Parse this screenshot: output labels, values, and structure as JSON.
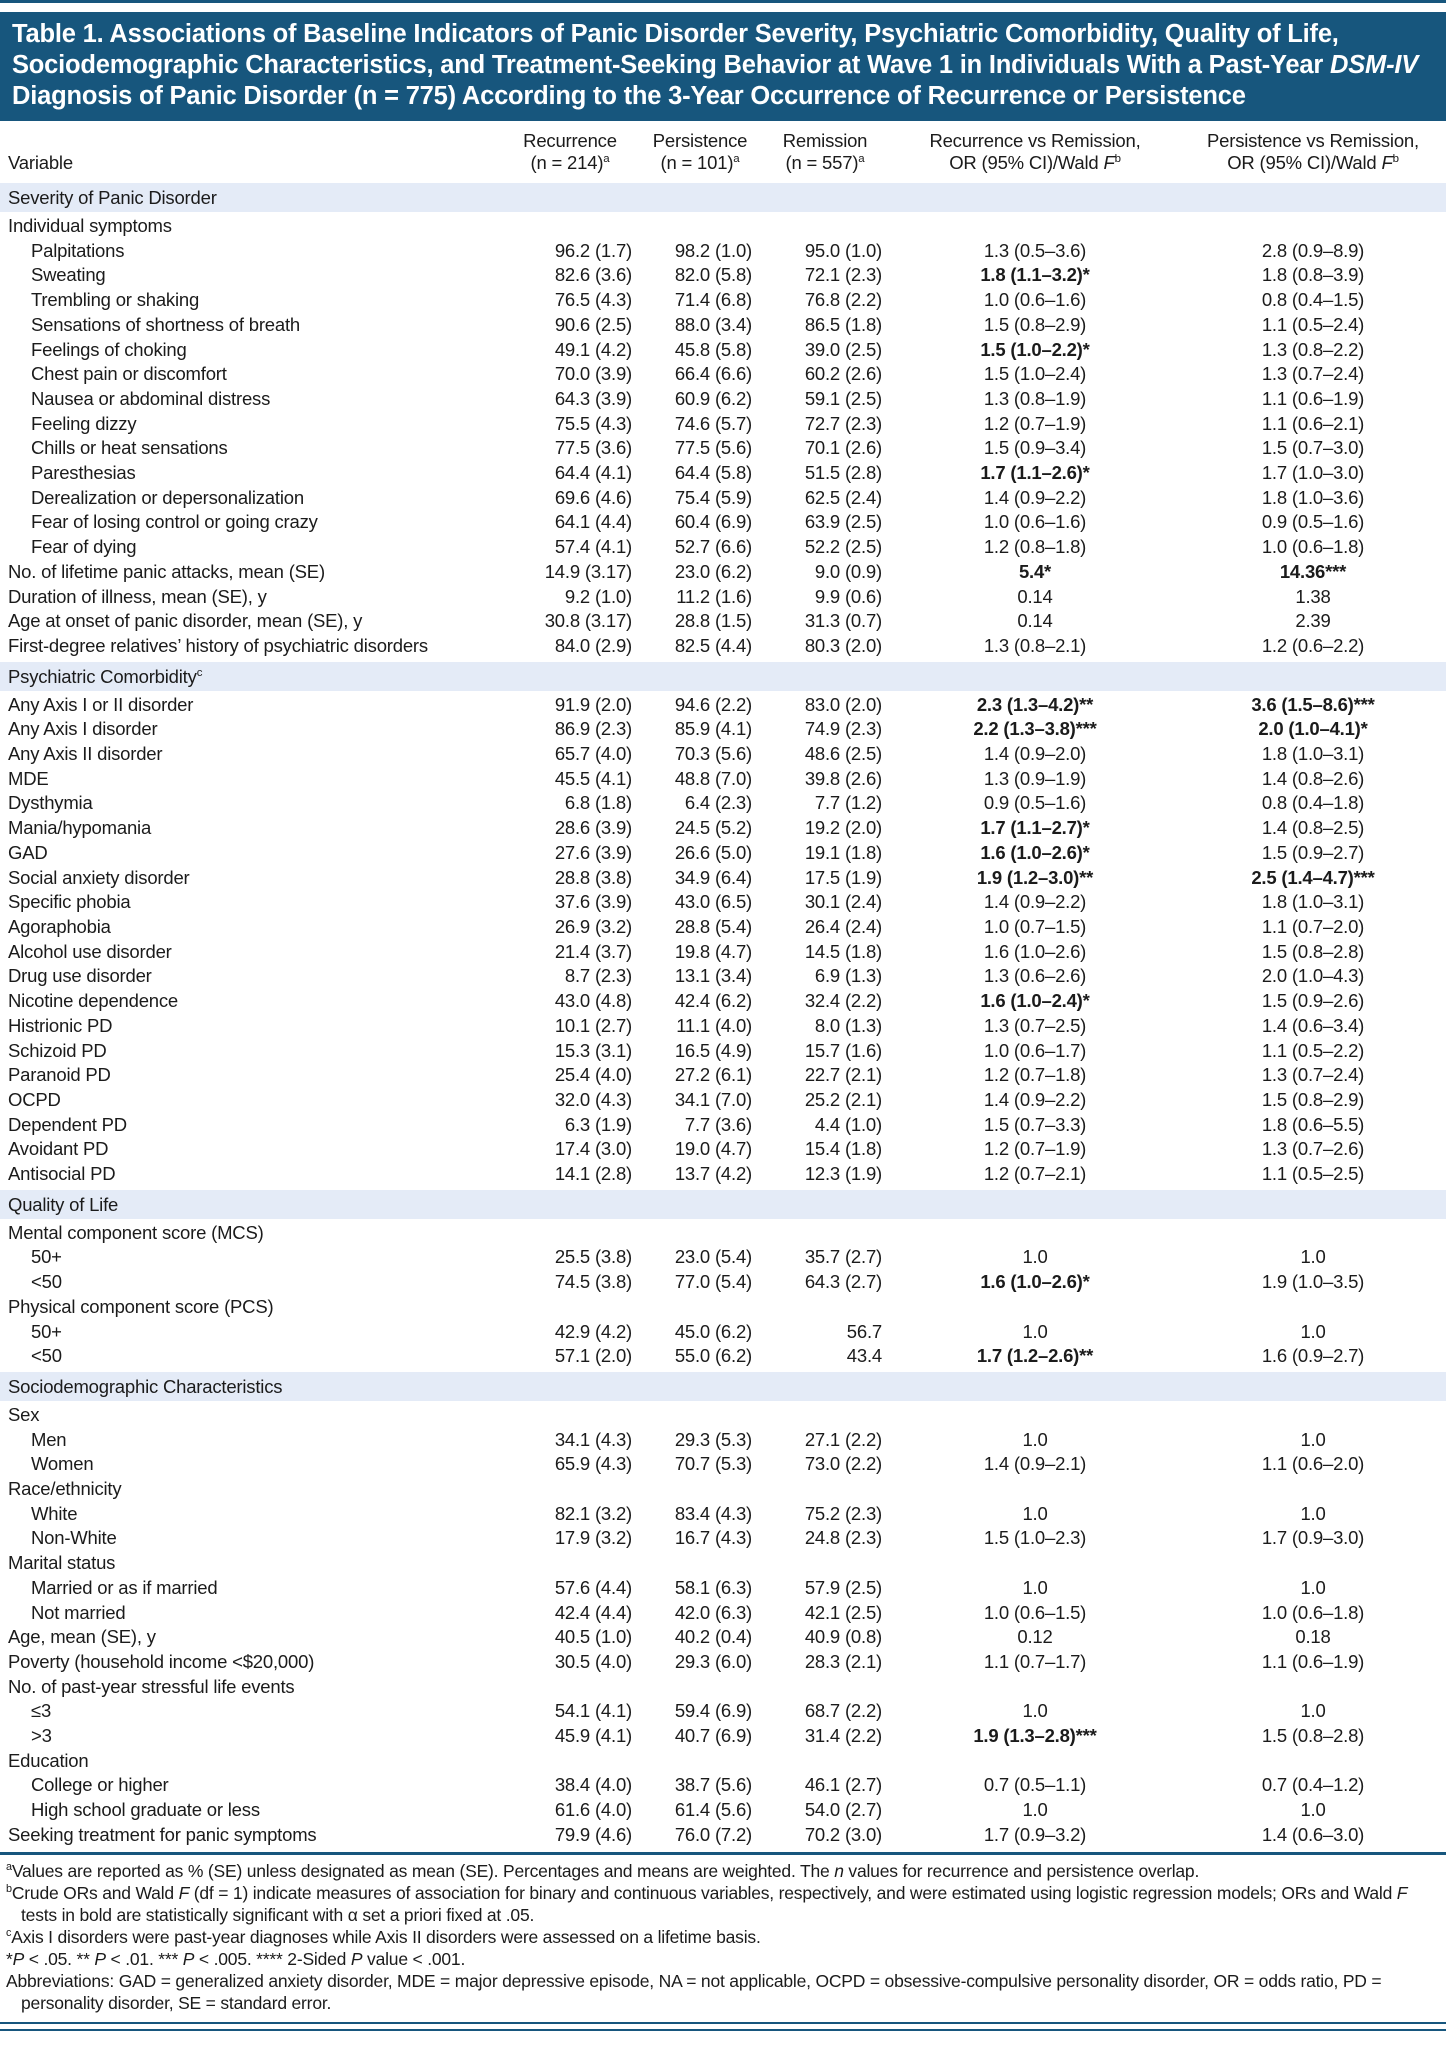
{
  "colors": {
    "header_bg": "#17567D",
    "section_band_bg": "#E4EBF7",
    "rule": "#17567D",
    "title_text": "#FFFFFF",
    "body_text": "#1B1B1B"
  },
  "title": {
    "line1": "Table 1. Associations of Baseline Indicators of Panic Disorder Severity, Psychiatric Comorbidity, Quality of Life,",
    "line2": "Sociodemographic Characteristics, and Treatment-Seeking Behavior at Wave 1 in Individuals With a Past-Year ",
    "line2_italic": "DSM-IV",
    "line3": "Diagnosis of Panic Disorder (n = 775) According to the 3-Year Occurrence of Recurrence or Persistence"
  },
  "columns": {
    "variable": "Variable",
    "recurrence": {
      "line1": "Recurrence",
      "line2": "(n = 214)",
      "sup": "a"
    },
    "persistence": {
      "line1": "Persistence",
      "line2": "(n = 101)",
      "sup": "a"
    },
    "remission": {
      "line1": "Remission",
      "line2": "(n = 557)",
      "sup": "a"
    },
    "rr": {
      "line1": "Recurrence vs Remission,",
      "line2": "OR (95% CI)/Wald ",
      "italic": "F",
      "sup": "b"
    },
    "pr": {
      "line1": "Persistence vs Remission,",
      "line2": "OR (95% CI)/Wald ",
      "italic": "F",
      "sup": "b"
    }
  },
  "table": {
    "sections": [
      {
        "label": "Severity of Panic Disorder",
        "sup": "",
        "rows": [
          [
            "Individual symptoms",
            0,
            "",
            "",
            "",
            "",
            "",
            ""
          ],
          [
            "Palpitations",
            1,
            "96.2 (1.7)",
            "98.2 (1.0)",
            "95.0 (1.0)",
            "1.3 (0.5–3.6)",
            "2.8 (0.9–8.9)",
            ""
          ],
          [
            "Sweating",
            1,
            "82.6 (3.6)",
            "82.0 (5.8)",
            "72.1 (2.3)",
            "1.8 (1.1–3.2)*",
            "1.8 (0.8–3.9)",
            "rr"
          ],
          [
            "Trembling or shaking",
            1,
            "76.5 (4.3)",
            "71.4 (6.8)",
            "76.8 (2.2)",
            "1.0 (0.6–1.6)",
            "0.8 (0.4–1.5)",
            ""
          ],
          [
            "Sensations of shortness of breath",
            1,
            "90.6 (2.5)",
            "88.0 (3.4)",
            "86.5 (1.8)",
            "1.5 (0.8–2.9)",
            "1.1 (0.5–2.4)",
            ""
          ],
          [
            "Feelings of choking",
            1,
            "49.1 (4.2)",
            "45.8 (5.8)",
            "39.0 (2.5)",
            "1.5 (1.0–2.2)*",
            "1.3 (0.8–2.2)",
            "rr"
          ],
          [
            "Chest pain or discomfort",
            1,
            "70.0 (3.9)",
            "66.4 (6.6)",
            "60.2 (2.6)",
            "1.5 (1.0–2.4)",
            "1.3 (0.7–2.4)",
            ""
          ],
          [
            "Nausea or abdominal distress",
            1,
            "64.3 (3.9)",
            "60.9 (6.2)",
            "59.1 (2.5)",
            "1.3 (0.8–1.9)",
            "1.1 (0.6–1.9)",
            ""
          ],
          [
            "Feeling dizzy",
            1,
            "75.5 (4.3)",
            "74.6 (5.7)",
            "72.7 (2.3)",
            "1.2 (0.7–1.9)",
            "1.1 (0.6–2.1)",
            ""
          ],
          [
            "Chills or heat sensations",
            1,
            "77.5 (3.6)",
            "77.5 (5.6)",
            "70.1 (2.6)",
            "1.5 (0.9–3.4)",
            "1.5 (0.7–3.0)",
            ""
          ],
          [
            "Paresthesias",
            1,
            "64.4 (4.1)",
            "64.4 (5.8)",
            "51.5 (2.8)",
            "1.7 (1.1–2.6)*",
            "1.7 (1.0–3.0)",
            "rr"
          ],
          [
            "Derealization or depersonalization",
            1,
            "69.6 (4.6)",
            "75.4 (5.9)",
            "62.5 (2.4)",
            "1.4 (0.9–2.2)",
            "1.8 (1.0–3.6)",
            ""
          ],
          [
            "Fear of losing control or going crazy",
            1,
            "64.1 (4.4)",
            "60.4 (6.9)",
            "63.9 (2.5)",
            "1.0 (0.6–1.6)",
            "0.9 (0.5–1.6)",
            ""
          ],
          [
            "Fear of dying",
            1,
            "57.4 (4.1)",
            "52.7 (6.6)",
            "52.2 (2.5)",
            "1.2 (0.8–1.8)",
            "1.0 (0.6–1.8)",
            ""
          ],
          [
            "No. of lifetime panic attacks, mean (SE)",
            0,
            "14.9 (3.17)",
            "23.0 (6.2)",
            "9.0 (0.9)",
            "5.4*",
            "14.36***",
            "both"
          ],
          [
            "Duration of illness, mean (SE), y",
            0,
            "9.2 (1.0)",
            "11.2 (1.6)",
            "9.9 (0.6)",
            "0.14",
            "1.38",
            ""
          ],
          [
            "Age at onset of panic disorder, mean (SE), y",
            0,
            "30.8 (3.17)",
            "28.8 (1.5)",
            "31.3 (0.7)",
            "0.14",
            "2.39",
            ""
          ],
          [
            "First-degree relatives’ history of psychiatric disorders",
            0,
            "84.0 (2.9)",
            "82.5 (4.4)",
            "80.3 (2.0)",
            "1.3 (0.8–2.1)",
            "1.2 (0.6–2.2)",
            ""
          ]
        ]
      },
      {
        "label": "Psychiatric Comorbidity",
        "sup": "c",
        "rows": [
          [
            "Any Axis I or II disorder",
            0,
            "91.9 (2.0)",
            "94.6 (2.2)",
            "83.0 (2.0)",
            "2.3 (1.3–4.2)**",
            "3.6 (1.5–8.6)***",
            "both"
          ],
          [
            "Any Axis I disorder",
            0,
            "86.9 (2.3)",
            "85.9 (4.1)",
            "74.9 (2.3)",
            "2.2 (1.3–3.8)***",
            "2.0 (1.0–4.1)*",
            "both"
          ],
          [
            "Any Axis II disorder",
            0,
            "65.7 (4.0)",
            "70.3 (5.6)",
            "48.6 (2.5)",
            "1.4 (0.9–2.0)",
            "1.8 (1.0–3.1)",
            ""
          ],
          [
            "MDE",
            0,
            "45.5 (4.1)",
            "48.8 (7.0)",
            "39.8 (2.6)",
            "1.3 (0.9–1.9)",
            "1.4 (0.8–2.6)",
            ""
          ],
          [
            "Dysthymia",
            0,
            "6.8 (1.8)",
            "6.4 (2.3)",
            "7.7 (1.2)",
            "0.9 (0.5–1.6)",
            "0.8 (0.4–1.8)",
            ""
          ],
          [
            "Mania/hypomania",
            0,
            "28.6 (3.9)",
            "24.5 (5.2)",
            "19.2 (2.0)",
            "1.7 (1.1–2.7)*",
            "1.4 (0.8–2.5)",
            "rr"
          ],
          [
            "GAD",
            0,
            "27.6 (3.9)",
            "26.6 (5.0)",
            "19.1 (1.8)",
            "1.6 (1.0–2.6)*",
            "1.5 (0.9–2.7)",
            "rr"
          ],
          [
            "Social anxiety disorder",
            0,
            "28.8 (3.8)",
            "34.9 (6.4)",
            "17.5 (1.9)",
            "1.9 (1.2–3.0)**",
            "2.5 (1.4–4.7)***",
            "both"
          ],
          [
            "Specific phobia",
            0,
            "37.6 (3.9)",
            "43.0 (6.5)",
            "30.1 (2.4)",
            "1.4 (0.9–2.2)",
            "1.8 (1.0–3.1)",
            ""
          ],
          [
            "Agoraphobia",
            0,
            "26.9 (3.2)",
            "28.8 (5.4)",
            "26.4 (2.4)",
            "1.0 (0.7–1.5)",
            "1.1 (0.7–2.0)",
            ""
          ],
          [
            "Alcohol use disorder",
            0,
            "21.4 (3.7)",
            "19.8 (4.7)",
            "14.5 (1.8)",
            "1.6 (1.0–2.6)",
            "1.5 (0.8–2.8)",
            ""
          ],
          [
            "Drug use disorder",
            0,
            "8.7 (2.3)",
            "13.1 (3.4)",
            "6.9 (1.3)",
            "1.3 (0.6–2.6)",
            "2.0 (1.0–4.3)",
            ""
          ],
          [
            "Nicotine dependence",
            0,
            "43.0 (4.8)",
            "42.4 (6.2)",
            "32.4 (2.2)",
            "1.6 (1.0–2.4)*",
            "1.5 (0.9–2.6)",
            "rr"
          ],
          [
            "Histrionic PD",
            0,
            "10.1 (2.7)",
            "11.1 (4.0)",
            "8.0 (1.3)",
            "1.3 (0.7–2.5)",
            "1.4 (0.6–3.4)",
            ""
          ],
          [
            "Schizoid PD",
            0,
            "15.3 (3.1)",
            "16.5 (4.9)",
            "15.7 (1.6)",
            "1.0 (0.6–1.7)",
            "1.1 (0.5–2.2)",
            ""
          ],
          [
            "Paranoid PD",
            0,
            "25.4 (4.0)",
            "27.2 (6.1)",
            "22.7 (2.1)",
            "1.2 (0.7–1.8)",
            "1.3 (0.7–2.4)",
            ""
          ],
          [
            "OCPD",
            0,
            "32.0 (4.3)",
            "34.1 (7.0)",
            "25.2 (2.1)",
            "1.4 (0.9–2.2)",
            "1.5 (0.8–2.9)",
            ""
          ],
          [
            "Dependent PD",
            0,
            "6.3 (1.9)",
            "7.7 (3.6)",
            "4.4 (1.0)",
            "1.5 (0.7–3.3)",
            "1.8 (0.6–5.5)",
            ""
          ],
          [
            "Avoidant PD",
            0,
            "17.4 (3.0)",
            "19.0 (4.7)",
            "15.4 (1.8)",
            "1.2 (0.7–1.9)",
            "1.3 (0.7–2.6)",
            ""
          ],
          [
            "Antisocial PD",
            0,
            "14.1 (2.8)",
            "13.7 (4.2)",
            "12.3 (1.9)",
            "1.2 (0.7–2.1)",
            "1.1 (0.5–2.5)",
            ""
          ]
        ]
      },
      {
        "label": "Quality of Life",
        "sup": "",
        "rows": [
          [
            "Mental component score (MCS)",
            0,
            "",
            "",
            "",
            "",
            "",
            ""
          ],
          [
            "50+",
            1,
            "25.5 (3.8)",
            "23.0 (5.4)",
            "35.7 (2.7)",
            "1.0",
            "1.0",
            ""
          ],
          [
            "<50",
            1,
            "74.5 (3.8)",
            "77.0 (5.4)",
            "64.3 (2.7)",
            "1.6 (1.0–2.6)*",
            "1.9 (1.0–3.5)",
            "rr"
          ],
          [
            "Physical component score (PCS)",
            0,
            "",
            "",
            "",
            "",
            "",
            ""
          ],
          [
            "50+",
            1,
            "42.9 (4.2)",
            "45.0 (6.2)",
            "56.7",
            "1.0",
            "1.0",
            ""
          ],
          [
            "<50",
            1,
            "57.1 (2.0)",
            "55.0 (6.2)",
            "43.4",
            "1.7 (1.2–2.6)**",
            "1.6 (0.9–2.7)",
            "rr"
          ]
        ]
      },
      {
        "label": "Sociodemographic Characteristics",
        "sup": "",
        "rows": [
          [
            "Sex",
            0,
            "",
            "",
            "",
            "",
            "",
            ""
          ],
          [
            "Men",
            1,
            "34.1 (4.3)",
            "29.3 (5.3)",
            "27.1 (2.2)",
            "1.0",
            "1.0",
            ""
          ],
          [
            "Women",
            1,
            "65.9 (4.3)",
            "70.7 (5.3)",
            "73.0 (2.2)",
            "1.4 (0.9–2.1)",
            "1.1 (0.6–2.0)",
            ""
          ],
          [
            "Race/ethnicity",
            0,
            "",
            "",
            "",
            "",
            "",
            ""
          ],
          [
            "White",
            1,
            "82.1 (3.2)",
            "83.4 (4.3)",
            "75.2 (2.3)",
            "1.0",
            "1.0",
            ""
          ],
          [
            "Non-White",
            1,
            "17.9 (3.2)",
            "16.7 (4.3)",
            "24.8 (2.3)",
            "1.5 (1.0–2.3)",
            "1.7 (0.9–3.0)",
            ""
          ],
          [
            "Marital status",
            0,
            "",
            "",
            "",
            "",
            "",
            ""
          ],
          [
            "Married or as if married",
            1,
            "57.6 (4.4)",
            "58.1 (6.3)",
            "57.9 (2.5)",
            "1.0",
            "1.0",
            ""
          ],
          [
            "Not married",
            1,
            "42.4 (4.4)",
            "42.0 (6.3)",
            "42.1 (2.5)",
            "1.0 (0.6–1.5)",
            "1.0 (0.6–1.8)",
            ""
          ],
          [
            "Age, mean (SE), y",
            0,
            "40.5 (1.0)",
            "40.2 (0.4)",
            "40.9 (0.8)",
            "0.12",
            "0.18",
            ""
          ],
          [
            "Poverty (household income <$20,000)",
            0,
            "30.5 (4.0)",
            "29.3 (6.0)",
            "28.3 (2.1)",
            "1.1 (0.7–1.7)",
            "1.1 (0.6–1.9)",
            ""
          ],
          [
            "No. of past-year stressful life events",
            0,
            "",
            "",
            "",
            "",
            "",
            ""
          ],
          [
            "≤3",
            1,
            "54.1 (4.1)",
            "59.4 (6.9)",
            "68.7 (2.2)",
            "1.0",
            "1.0",
            ""
          ],
          [
            ">3",
            1,
            "45.9 (4.1)",
            "40.7 (6.9)",
            "31.4 (2.2)",
            "1.9 (1.3–2.8)***",
            "1.5 (0.8–2.8)",
            "rr"
          ],
          [
            "Education",
            0,
            "",
            "",
            "",
            "",
            "",
            ""
          ],
          [
            "College or higher",
            1,
            "38.4 (4.0)",
            "38.7 (5.6)",
            "46.1 (2.7)",
            "0.7 (0.5–1.1)",
            "0.7 (0.4–1.2)",
            ""
          ],
          [
            "High school graduate or less",
            1,
            "61.6 (4.0)",
            "61.4 (5.6)",
            "54.0 (2.7)",
            "1.0",
            "1.0",
            ""
          ],
          [
            "Seeking treatment for panic symptoms",
            0,
            "79.9 (4.6)",
            "76.0 (7.2)",
            "70.2 (3.0)",
            "1.7 (0.9–3.2)",
            "1.4 (0.6–3.0)",
            ""
          ]
        ]
      }
    ]
  },
  "footnotes": [
    {
      "segs": [
        {
          "t": "a",
          "s": 1
        },
        {
          "t": "Values are reported as % (SE) unless designated as mean (SE). Percentages and means are weighted. The "
        },
        {
          "t": "n",
          "i": 1
        },
        {
          "t": " values for recurrence and persistence overlap."
        }
      ]
    },
    {
      "segs": [
        {
          "t": "b",
          "s": 1
        },
        {
          "t": "Crude ORs and Wald "
        },
        {
          "t": "F",
          "i": 1
        },
        {
          "t": " (df = 1) indicate measures of association for binary and continuous variables, respectively, and were estimated using logistic regression models; ORs and Wald "
        },
        {
          "t": "F",
          "i": 1
        },
        {
          "t": " tests in bold are statistically significant with α set a priori fixed at .05."
        }
      ]
    },
    {
      "segs": [
        {
          "t": "c",
          "s": 1
        },
        {
          "t": "Axis I disorders were past-year diagnoses while Axis II disorders were assessed on a lifetime basis."
        }
      ]
    },
    {
      "segs": [
        {
          "t": "*"
        },
        {
          "t": "P",
          "i": 1
        },
        {
          "t": " < .05. ** "
        },
        {
          "t": "P",
          "i": 1
        },
        {
          "t": " < .01. *** "
        },
        {
          "t": "P",
          "i": 1
        },
        {
          "t": " < .005. **** 2-Sided "
        },
        {
          "t": "P",
          "i": 1
        },
        {
          "t": " value < .001."
        }
      ]
    },
    {
      "segs": [
        {
          "t": "Abbreviations: GAD = generalized anxiety disorder, MDE = major depressive episode, NA = not applicable, OCPD = obsessive-compulsive personality disorder, OR = odds ratio, PD = personality disorder, SE = standard error."
        }
      ]
    }
  ]
}
